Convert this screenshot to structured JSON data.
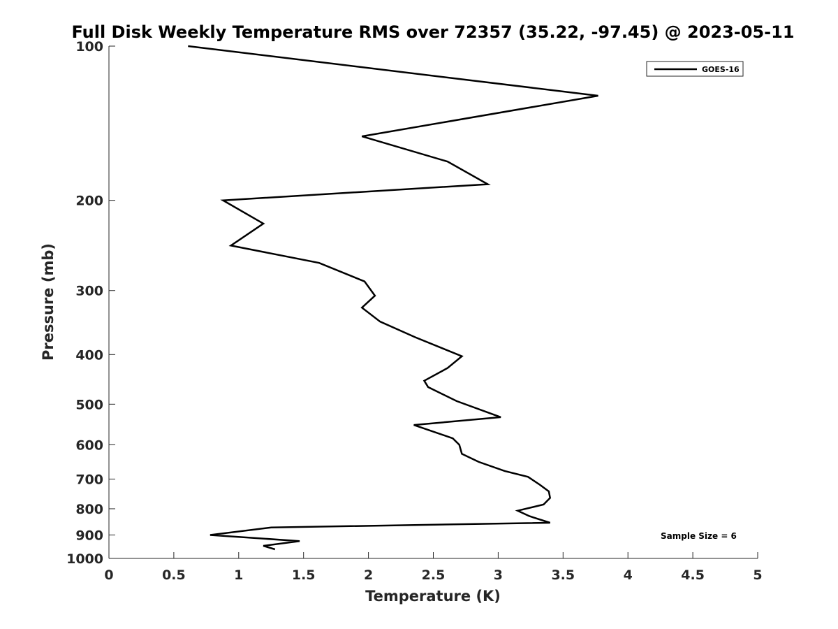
{
  "chart_data": {
    "type": "line",
    "title": "Full Disk Weekly Temperature RMS over 72357 (35.22, -97.45) @ 2023-05-11",
    "xlabel": "Temperature (K)",
    "ylabel": "Pressure (mb)",
    "xlim": [
      0,
      5
    ],
    "ylim": [
      100,
      1000
    ],
    "yscale": "log",
    "yreversed": true,
    "x_ticks": [
      0,
      0.5,
      1,
      1.5,
      2,
      2.5,
      3,
      3.5,
      4,
      4.5,
      5
    ],
    "x_tick_labels": [
      "0",
      "0.5",
      "1",
      "1.5",
      "2",
      "2.5",
      "3",
      "3.5",
      "4",
      "4.5",
      "5"
    ],
    "y_ticks": [
      100,
      200,
      300,
      400,
      500,
      600,
      700,
      800,
      900,
      1000
    ],
    "y_tick_labels": [
      "100",
      "200",
      "300",
      "400",
      "500",
      "600",
      "700",
      "800",
      "900",
      "1000"
    ],
    "grid": false,
    "legend_position": "top-right",
    "line_color": "#000000",
    "series": [
      {
        "name": "GOES-16",
        "x": [
          0.61,
          3.77,
          1.95,
          2.61,
          2.92,
          0.88,
          1.19,
          0.94,
          1.62,
          1.97,
          2.05,
          1.95,
          2.09,
          2.36,
          2.72,
          2.61,
          2.43,
          2.46,
          2.68,
          3.02,
          2.35,
          2.65,
          2.7,
          2.72,
          2.85,
          3.05,
          3.23,
          3.32,
          3.39,
          3.4,
          3.35,
          3.15,
          3.24,
          3.4,
          1.25,
          0.78,
          1.47,
          1.19,
          1.28
        ],
        "y": [
          100,
          125,
          150,
          168,
          186,
          200,
          222,
          245,
          265,
          288,
          307,
          324,
          345,
          370,
          403,
          425,
          450,
          463,
          493,
          530,
          549,
          583,
          600,
          625,
          648,
          675,
          693,
          718,
          740,
          762,
          785,
          807,
          827,
          852,
          870,
          900,
          925,
          945,
          960
        ]
      }
    ],
    "annotations": [
      "Sample Size = 6"
    ]
  }
}
